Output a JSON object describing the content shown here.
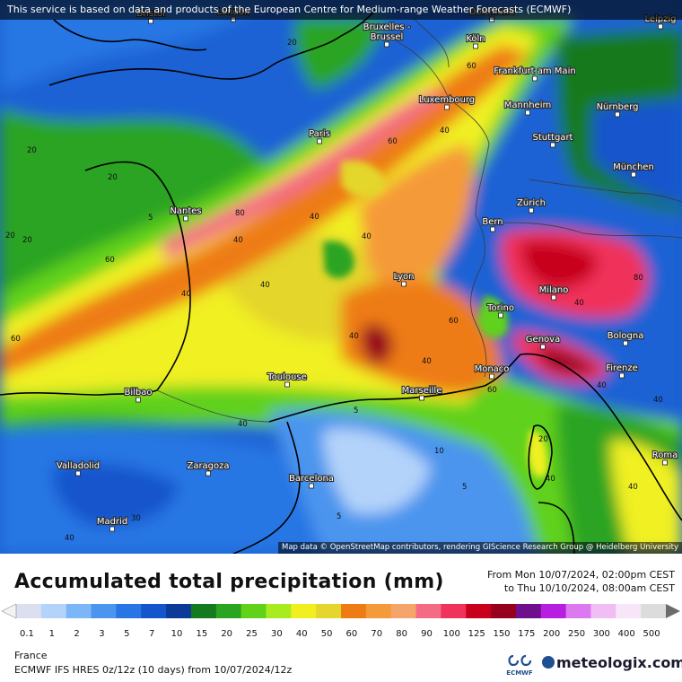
{
  "banner": "This service is based on data and products of the European Centre for Medium-range Weather Forecasts (ECMWF)",
  "attribution": "Map data © OpenStreetMap contributors, rendering GIScience Research Group @ Heidelberg University",
  "title": "Accumulated total precipitation (mm)",
  "valid_from": "From Mon 10/07/2024, 02:00pm CEST",
  "valid_to": "to Thu 10/10/2024, 08:00am CEST",
  "region": "France",
  "model_run": "ECMWF IFS HRES 0z/12z (10 days) from 10/07/2024/12z",
  "brand": "meteologix.com",
  "ecmwf_logo_text": "ECMWF",
  "scale": {
    "labels": [
      "0.1",
      "1",
      "2",
      "3",
      "5",
      "7",
      "10",
      "15",
      "20",
      "25",
      "30",
      "40",
      "50",
      "60",
      "70",
      "80",
      "90",
      "100",
      "125",
      "150",
      "175",
      "200",
      "250",
      "300",
      "400",
      "500"
    ],
    "colors": [
      "#dcdff0",
      "#b3d3fa",
      "#7cb6f6",
      "#4c95ee",
      "#2776e4",
      "#1555cc",
      "#0c3a99",
      "#157a1e",
      "#2aa421",
      "#61d11a",
      "#a8eb1f",
      "#f0f021",
      "#e4d62c",
      "#ee7b14",
      "#f59a38",
      "#f5a56a",
      "#f46b86",
      "#f0335a",
      "#c8001c",
      "#96001c",
      "#6e0f8c",
      "#b81ee0",
      "#dc78f0",
      "#f0bef5",
      "#f7e6f7",
      "#dcdcdc"
    ]
  },
  "cities": [
    {
      "name": "Bristol"
    },
    {
      "name": "London"
    },
    {
      "name": "Dortmund"
    },
    {
      "name": "Leipzig"
    },
    {
      "name": "Bruxelles - Brussel"
    },
    {
      "name": "Köln"
    },
    {
      "name": "Frankfurt am Main"
    },
    {
      "name": "Luxembourg"
    },
    {
      "name": "Mannheim"
    },
    {
      "name": "Nürnberg"
    },
    {
      "name": "Paris"
    },
    {
      "name": "Stuttgart"
    },
    {
      "name": "München"
    },
    {
      "name": "Nantes"
    },
    {
      "name": "Zürich"
    },
    {
      "name": "Bern"
    },
    {
      "name": "Lyon"
    },
    {
      "name": "Milano"
    },
    {
      "name": "Torino"
    },
    {
      "name": "Bologna"
    },
    {
      "name": "Genova"
    },
    {
      "name": "Monaco"
    },
    {
      "name": "Firenze"
    },
    {
      "name": "Toulouse"
    },
    {
      "name": "Marseille"
    },
    {
      "name": "Bilbao"
    },
    {
      "name": "Valladolid"
    },
    {
      "name": "Zaragoza"
    },
    {
      "name": "Barcelona"
    },
    {
      "name": "Madrid"
    },
    {
      "name": "Roma"
    }
  ],
  "contour_labels": [
    "20",
    "40",
    "60",
    "80",
    "5",
    "10",
    "30"
  ]
}
